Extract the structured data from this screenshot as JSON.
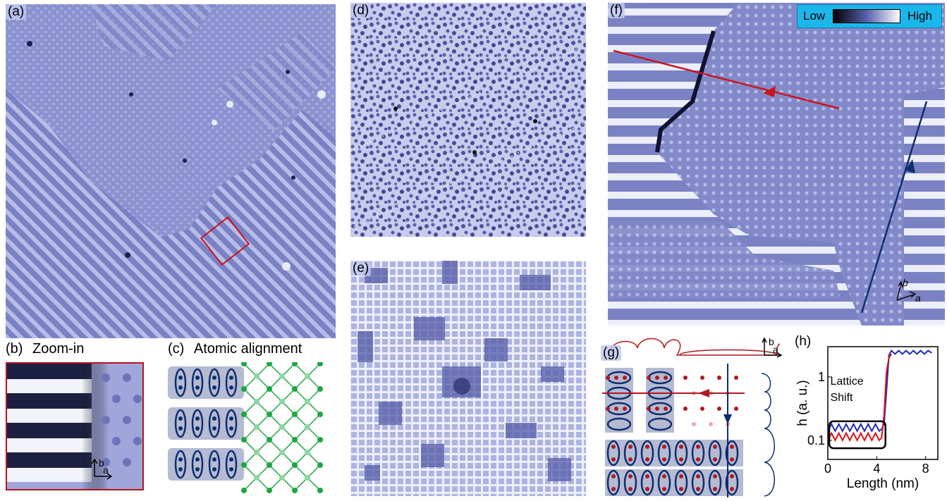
{
  "panels": {
    "a": {
      "label": "(a)"
    },
    "b": {
      "label": "(b)",
      "caption": "Zoom-in"
    },
    "c": {
      "label": "(c)",
      "caption": "Atomic alignment"
    },
    "d": {
      "label": "(d)"
    },
    "e": {
      "label": "(e)"
    },
    "f": {
      "label": "(f)"
    },
    "g": {
      "label": "(g)"
    },
    "h": {
      "label": "(h)"
    }
  },
  "colorbar": {
    "low": "Low",
    "high": "High"
  },
  "axes_labels": {
    "a": "a",
    "b": "b"
  },
  "chart_data": {
    "type": "line",
    "xlabel": "Length (nm)",
    "ylabel": "h (a. u.)",
    "yscale": "log",
    "xlim": [
      0,
      9
    ],
    "ylim": [
      0.05,
      3
    ],
    "xticks": [
      "0",
      "4",
      "8"
    ],
    "yticks": [
      "0.1",
      "1"
    ],
    "annotation": "Lattice\nShift",
    "series": [
      {
        "color": "#1c2ab8",
        "x": [
          0,
          0.3,
          0.6,
          0.9,
          1.2,
          1.5,
          1.8,
          2.1,
          2.4,
          2.7,
          3.0,
          3.3,
          3.6,
          3.9,
          4.2,
          4.4,
          4.6,
          4.8,
          5.0,
          5.2,
          5.5,
          5.8,
          6.1,
          6.4,
          6.7,
          7.0,
          7.3,
          7.6,
          7.9,
          8.2,
          8.5
        ],
        "y": [
          0.14,
          0.18,
          0.14,
          0.18,
          0.14,
          0.18,
          0.14,
          0.18,
          0.14,
          0.18,
          0.14,
          0.18,
          0.14,
          0.18,
          0.14,
          0.15,
          0.18,
          0.6,
          2.2,
          2.6,
          2.3,
          2.6,
          2.3,
          2.6,
          2.3,
          2.6,
          2.3,
          2.6,
          2.3,
          2.6,
          2.4
        ]
      },
      {
        "color": "#e01010",
        "x": [
          0,
          0.3,
          0.6,
          0.9,
          1.2,
          1.5,
          1.8,
          2.1,
          2.4,
          2.7,
          3.0,
          3.3,
          3.6,
          3.9,
          4.2,
          4.4,
          4.6,
          4.8,
          5.0,
          5.2
        ],
        "y": [
          0.1,
          0.13,
          0.1,
          0.13,
          0.1,
          0.13,
          0.1,
          0.13,
          0.1,
          0.13,
          0.1,
          0.13,
          0.1,
          0.13,
          0.1,
          0.11,
          0.25,
          1.2,
          2.0,
          2.3
        ]
      }
    ]
  },
  "colors": {
    "stm_base": "#7d84c6",
    "red_line": "#c8141e",
    "blue_line": "#0f2d6e",
    "green_lattice": "#1da642",
    "colorbar_bg": "#1cb7ea"
  }
}
